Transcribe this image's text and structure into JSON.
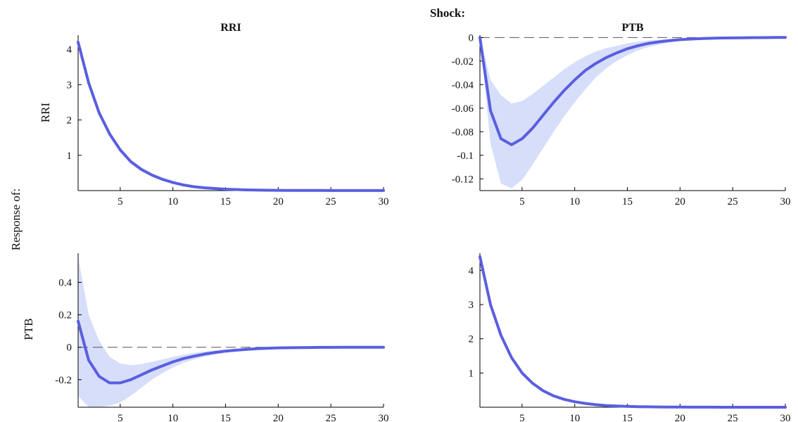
{
  "figure": {
    "shock_label": "Shock:",
    "response_label": "Response of:",
    "shock_names": [
      "RRI",
      "PTB"
    ],
    "response_names": [
      "RRI",
      "PTB"
    ]
  },
  "style": {
    "line_color": "#5a5ee0",
    "band_color": "#d6defa",
    "zero_line_color": "#555555"
  },
  "chart_data": [
    {
      "type": "line",
      "title": "RRI",
      "ylabel": "RRI",
      "xlim": [
        1,
        30
      ],
      "ylim": [
        0,
        4.4
      ],
      "x_ticks": [
        5,
        10,
        15,
        20,
        25,
        30
      ],
      "y_ticks": [
        1,
        2,
        3,
        4
      ],
      "x": [
        1,
        2,
        3,
        4,
        5,
        6,
        7,
        8,
        9,
        10,
        11,
        12,
        13,
        14,
        15,
        16,
        17,
        18,
        19,
        20,
        21,
        22,
        23,
        24,
        25,
        26,
        27,
        28,
        29,
        30
      ],
      "series": [
        {
          "values": [
            4.2,
            3.05,
            2.2,
            1.6,
            1.15,
            0.82,
            0.6,
            0.44,
            0.32,
            0.23,
            0.16,
            0.11,
            0.08,
            0.06,
            0.04,
            0.03,
            0.02,
            0.015,
            0.01,
            0.008,
            0.006,
            0.005,
            0.004,
            0.003,
            0.002,
            0.002,
            0.001,
            0.001,
            0.001,
            0.001
          ]
        }
      ],
      "band_upper": [
        4.25,
        3.12,
        2.28,
        1.67,
        1.22,
        0.89,
        0.66,
        0.49,
        0.36,
        0.26,
        0.19,
        0.13,
        0.09,
        0.07,
        0.05,
        0.035,
        0.025,
        0.018,
        0.013,
        0.01,
        0.008,
        0.006,
        0.005,
        0.004,
        0.003,
        0.002,
        0.002,
        0.001,
        0.001,
        0.001
      ],
      "band_lower": [
        4.15,
        2.98,
        2.12,
        1.53,
        1.08,
        0.76,
        0.55,
        0.4,
        0.28,
        0.2,
        0.14,
        0.1,
        0.07,
        0.05,
        0.035,
        0.025,
        0.017,
        0.012,
        0.008,
        0.006,
        0.005,
        0.004,
        0.003,
        0.002,
        0.002,
        0.001,
        0.001,
        0.001,
        0.0,
        0.0
      ]
    },
    {
      "type": "line",
      "title": "PTB",
      "ylabel": "",
      "xlim": [
        1,
        30
      ],
      "ylim": [
        -0.13,
        0.002
      ],
      "x_ticks": [
        5,
        10,
        15,
        20,
        25,
        30
      ],
      "y_ticks": [
        0,
        -0.02,
        -0.04,
        -0.06,
        -0.08,
        -0.1,
        -0.12
      ],
      "y_tick_labels": [
        "0",
        "-0.02",
        "-0.04",
        "-0.06",
        "-0.08",
        "-0.1",
        "-0.12"
      ],
      "x": [
        1,
        2,
        3,
        4,
        5,
        6,
        7,
        8,
        9,
        10,
        11,
        12,
        13,
        14,
        15,
        16,
        17,
        18,
        19,
        20,
        21,
        22,
        23,
        24,
        25,
        26,
        27,
        28,
        29,
        30
      ],
      "series": [
        {
          "values": [
            0,
            -0.062,
            -0.086,
            -0.091,
            -0.086,
            -0.077,
            -0.066,
            -0.055,
            -0.045,
            -0.036,
            -0.028,
            -0.022,
            -0.017,
            -0.013,
            -0.0095,
            -0.007,
            -0.005,
            -0.0037,
            -0.0026,
            -0.0018,
            -0.0013,
            -0.0009,
            -0.0006,
            -0.0004,
            -0.0003,
            -0.0002,
            -0.0001,
            -0.0001,
            0,
            0
          ]
        }
      ],
      "band_upper": [
        0,
        -0.036,
        -0.049,
        -0.056,
        -0.054,
        -0.048,
        -0.041,
        -0.034,
        -0.027,
        -0.021,
        -0.016,
        -0.012,
        -0.009,
        -0.007,
        -0.005,
        -0.0035,
        -0.0025,
        -0.0018,
        -0.0012,
        -0.0008,
        -0.0006,
        -0.0004,
        -0.0003,
        -0.0002,
        -0.0001,
        -0.0001,
        0,
        0,
        0,
        0
      ],
      "band_lower": [
        0,
        -0.09,
        -0.124,
        -0.128,
        -0.121,
        -0.108,
        -0.094,
        -0.08,
        -0.067,
        -0.055,
        -0.044,
        -0.034,
        -0.026,
        -0.02,
        -0.015,
        -0.011,
        -0.008,
        -0.006,
        -0.0042,
        -0.003,
        -0.0021,
        -0.0015,
        -0.001,
        -0.0007,
        -0.0005,
        -0.0003,
        -0.0002,
        -0.0001,
        -0.0001,
        0
      ]
    },
    {
      "type": "line",
      "title": "",
      "ylabel": "PTB",
      "xlim": [
        1,
        30
      ],
      "ylim": [
        -0.37,
        0.58
      ],
      "x_ticks": [
        5,
        10,
        15,
        20,
        25,
        30
      ],
      "y_ticks": [
        0.4,
        0.2,
        0,
        -0.2
      ],
      "y_tick_labels": [
        "0.4",
        "0.2",
        "0",
        "-0.2"
      ],
      "x": [
        1,
        2,
        3,
        4,
        5,
        6,
        7,
        8,
        9,
        10,
        11,
        12,
        13,
        14,
        15,
        16,
        17,
        18,
        19,
        20,
        21,
        22,
        23,
        24,
        25,
        26,
        27,
        28,
        29,
        30
      ],
      "series": [
        {
          "values": [
            0.16,
            -0.08,
            -0.18,
            -0.22,
            -0.22,
            -0.2,
            -0.17,
            -0.14,
            -0.115,
            -0.09,
            -0.07,
            -0.055,
            -0.042,
            -0.032,
            -0.024,
            -0.018,
            -0.013,
            -0.009,
            -0.006,
            -0.004,
            -0.003,
            -0.002,
            -0.0015,
            -0.001,
            -0.0007,
            -0.0005,
            -0.0003,
            -0.0002,
            -0.0001,
            0
          ]
        }
      ],
      "band_upper": [
        0.56,
        0.2,
        0.04,
        -0.06,
        -0.1,
        -0.11,
        -0.105,
        -0.09,
        -0.075,
        -0.06,
        -0.046,
        -0.035,
        -0.026,
        -0.019,
        -0.014,
        -0.01,
        -0.007,
        -0.005,
        -0.003,
        -0.002,
        -0.0015,
        -0.001,
        -0.0007,
        -0.0005,
        -0.0003,
        -0.0002,
        -0.0001,
        0,
        0,
        0
      ],
      "band_lower": [
        -0.3,
        -0.37,
        -0.37,
        -0.36,
        -0.34,
        -0.3,
        -0.25,
        -0.2,
        -0.16,
        -0.125,
        -0.096,
        -0.075,
        -0.058,
        -0.045,
        -0.034,
        -0.026,
        -0.019,
        -0.014,
        -0.01,
        -0.007,
        -0.005,
        -0.0035,
        -0.0025,
        -0.0017,
        -0.0012,
        -0.0008,
        -0.0005,
        -0.0003,
        -0.0002,
        -0.0001
      ]
    },
    {
      "type": "line",
      "title": "",
      "ylabel": "",
      "xlim": [
        1,
        30
      ],
      "ylim": [
        0,
        4.5
      ],
      "x_ticks": [
        5,
        10,
        15,
        20,
        25,
        30
      ],
      "y_ticks": [
        1,
        2,
        3,
        4
      ],
      "x": [
        1,
        2,
        3,
        4,
        5,
        6,
        7,
        8,
        9,
        10,
        11,
        12,
        13,
        14,
        15,
        16,
        17,
        18,
        19,
        20,
        21,
        22,
        23,
        24,
        25,
        26,
        27,
        28,
        29,
        30
      ],
      "series": [
        {
          "values": [
            4.4,
            3.0,
            2.1,
            1.45,
            1.0,
            0.7,
            0.48,
            0.33,
            0.23,
            0.16,
            0.11,
            0.075,
            0.05,
            0.035,
            0.024,
            0.017,
            0.012,
            0.008,
            0.005,
            0.0035,
            0.0025,
            0.0017,
            0.0012,
            0.0008,
            0.0005,
            0.0004,
            0.0003,
            0.0002,
            0.0001,
            0.0001
          ]
        }
      ],
      "band_upper": [
        4.45,
        3.05,
        2.15,
        1.5,
        1.04,
        0.73,
        0.5,
        0.35,
        0.24,
        0.17,
        0.12,
        0.08,
        0.055,
        0.038,
        0.026,
        0.018,
        0.013,
        0.009,
        0.006,
        0.004,
        0.003,
        0.002,
        0.0014,
        0.001,
        0.0007,
        0.0005,
        0.0003,
        0.0002,
        0.0001,
        0.0001
      ],
      "band_lower": [
        4.35,
        2.95,
        2.05,
        1.4,
        0.96,
        0.67,
        0.46,
        0.31,
        0.22,
        0.15,
        0.1,
        0.07,
        0.046,
        0.032,
        0.022,
        0.015,
        0.01,
        0.007,
        0.005,
        0.003,
        0.002,
        0.0015,
        0.001,
        0.0007,
        0.0005,
        0.0003,
        0.0002,
        0.0001,
        0.0001,
        0
      ]
    }
  ]
}
